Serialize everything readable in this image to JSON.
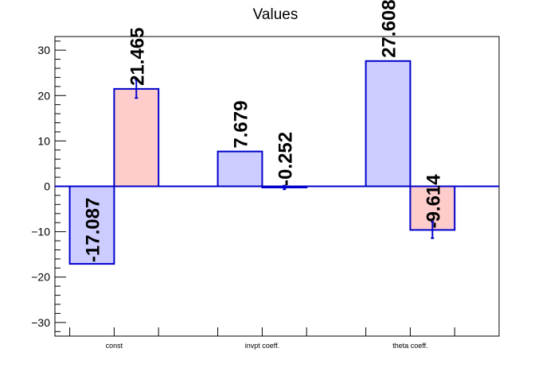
{
  "chart_data": {
    "type": "bar",
    "title": "Values",
    "xlabel": "",
    "ylabel": "",
    "ylim": [
      -33,
      33
    ],
    "yticks": [
      -30,
      -20,
      -10,
      0,
      10,
      20,
      30
    ],
    "ytick_labels": [
      "−30",
      "−20",
      "−10",
      "0",
      "10",
      "20",
      "30"
    ],
    "grid": false,
    "categories": [
      "const",
      "invpt coeff.",
      "theta coeff."
    ],
    "series": [
      {
        "color_fill": "#ccccff",
        "color_edge": "#0000cc",
        "values": [
          -17.087,
          7.679,
          27.608
        ],
        "value_labels": [
          "-17.087",
          "7.679",
          "27.608"
        ],
        "errors": [
          0,
          0,
          0
        ]
      },
      {
        "color_fill": "#ffcccc",
        "color_edge": "#0000cc",
        "values": [
          21.465,
          -0.252,
          -9.614
        ],
        "value_labels": [
          "21.465",
          "-0.252",
          "-9.614"
        ],
        "errors": [
          2.0,
          0.4,
          1.8
        ]
      }
    ],
    "zero_line_color": "#0000cc",
    "error_bar_color": "#0000cc"
  }
}
